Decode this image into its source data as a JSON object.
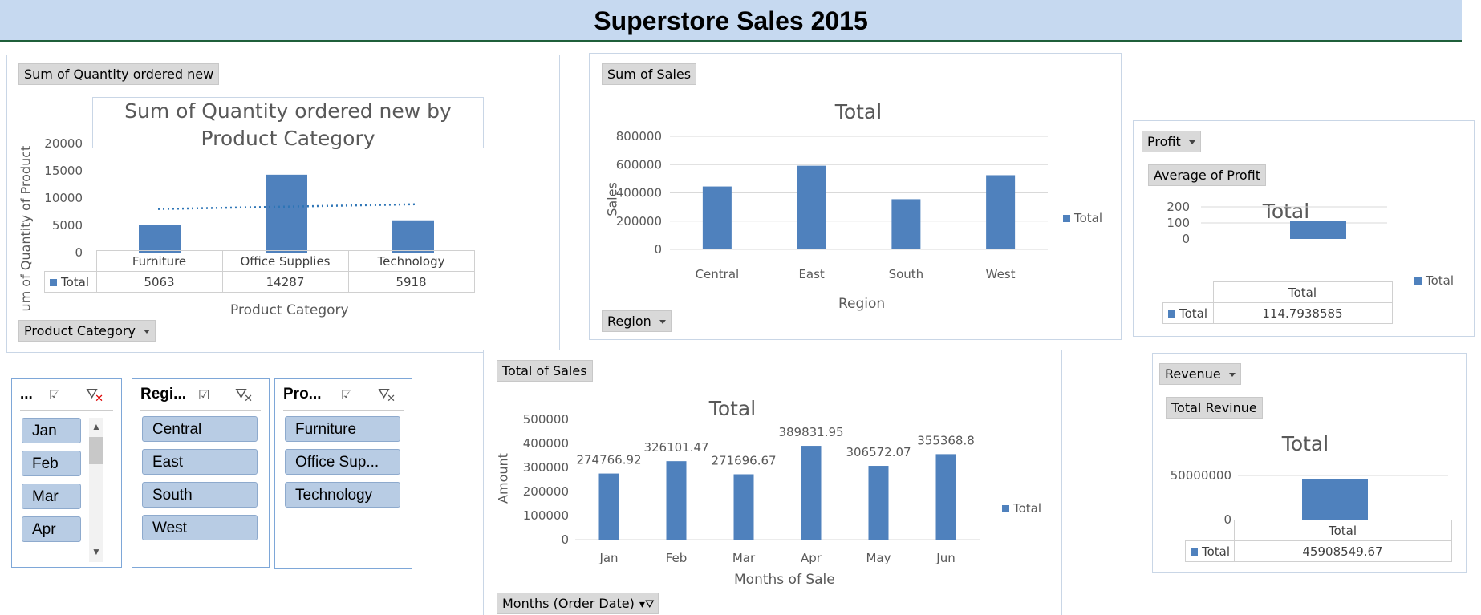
{
  "page_title": "Superstore Sales 2015",
  "qty_chart": {
    "field_tag": "Sum of Quantity ordered new",
    "title": "Sum of Quantity ordered new by Product Category",
    "ylabel": "um of Quantity of Product",
    "xlabel": "Product Category",
    "filter_tag": "Product Category",
    "y_ticks": [
      "20000",
      "15000",
      "10000",
      "5000",
      "0"
    ],
    "legend_label": "Total",
    "colors": {
      "bar": "#4f81bd",
      "trend": "#2e75b6"
    }
  },
  "sales_region": {
    "field_tag": "Sum of Sales",
    "title": "Total",
    "ylabel": "Sales",
    "xlabel": "Region",
    "filter_tag": "Region",
    "y_ticks": [
      "800000",
      "600000",
      "400000",
      "200000",
      "0"
    ],
    "legend_label": "Total"
  },
  "profit": {
    "filter_tag": "Profit",
    "field_tag": "Average of Profit",
    "title": "Total",
    "y_ticks": [
      "200",
      "100",
      "0"
    ],
    "col_header": "Total",
    "row_label": "Total",
    "value_text": "114.7938585",
    "legend_label": "Total"
  },
  "revenue": {
    "filter_tag": "Revenue",
    "field_tag": "Total Revinue",
    "title": "Total",
    "y_ticks": [
      "50000000",
      "0"
    ],
    "col_header": "Total",
    "row_label": "Total",
    "value_text": "45908549.67",
    "legend_label": "Total"
  },
  "monthly": {
    "field_tag": "Total of Sales",
    "title": "Total",
    "ylabel": "Amount",
    "xlabel": "Months of Sale",
    "filter_tag": "Months (Order Date)",
    "y_ticks": [
      "500000",
      "400000",
      "300000",
      "200000",
      "100000",
      "0"
    ],
    "legend_label": "Total"
  },
  "slicers": {
    "months": {
      "header": "...",
      "items": [
        "Jan",
        "Feb",
        "Mar",
        "Apr"
      ]
    },
    "region": {
      "header": "Regi...",
      "items": [
        "Central",
        "East",
        "South",
        "West"
      ]
    },
    "product": {
      "header": "Pro...",
      "items": [
        "Furniture",
        "Office Sup...",
        "Technology"
      ]
    }
  },
  "chart_data": [
    {
      "type": "bar",
      "title": "Sum of Quantity ordered new by Product Category",
      "xlabel": "Product Category",
      "ylabel": "um of Quantity of Product",
      "categories": [
        "Furniture",
        "Office Supplies",
        "Technology"
      ],
      "series": [
        {
          "name": "Total",
          "values": [
            5063,
            14287,
            5918
          ]
        }
      ],
      "ylim": [
        0,
        20000
      ],
      "trendline": "linear"
    },
    {
      "type": "bar",
      "title": "Total",
      "xlabel": "Region",
      "ylabel": "Sales",
      "categories": [
        "Central",
        "East",
        "South",
        "West"
      ],
      "series": [
        {
          "name": "Total",
          "values": [
            445000,
            592000,
            355000,
            525000
          ]
        }
      ],
      "ylim": [
        0,
        800000
      ],
      "grid": true,
      "legend": "right"
    },
    {
      "type": "bar",
      "title": "Total",
      "categories": [
        "Total"
      ],
      "series": [
        {
          "name": "Total",
          "values": [
            114.7938585
          ]
        }
      ],
      "ylim": [
        0,
        200
      ],
      "grid": true,
      "legend": "right"
    },
    {
      "type": "bar",
      "title": "Total",
      "categories": [
        "Total"
      ],
      "series": [
        {
          "name": "Total",
          "values": [
            45908549.67
          ]
        }
      ],
      "ylim": [
        0,
        50000000
      ],
      "grid": true
    },
    {
      "type": "bar",
      "title": "Total",
      "xlabel": "Months of Sale",
      "ylabel": "Amount",
      "categories": [
        "Jan",
        "Feb",
        "Mar",
        "Apr",
        "May",
        "Jun"
      ],
      "series": [
        {
          "name": "Total",
          "values": [
            274766.92,
            326101.47,
            271696.67,
            389831.95,
            306572.07,
            355368.8
          ]
        }
      ],
      "ylim": [
        0,
        500000
      ],
      "legend": "right"
    }
  ]
}
